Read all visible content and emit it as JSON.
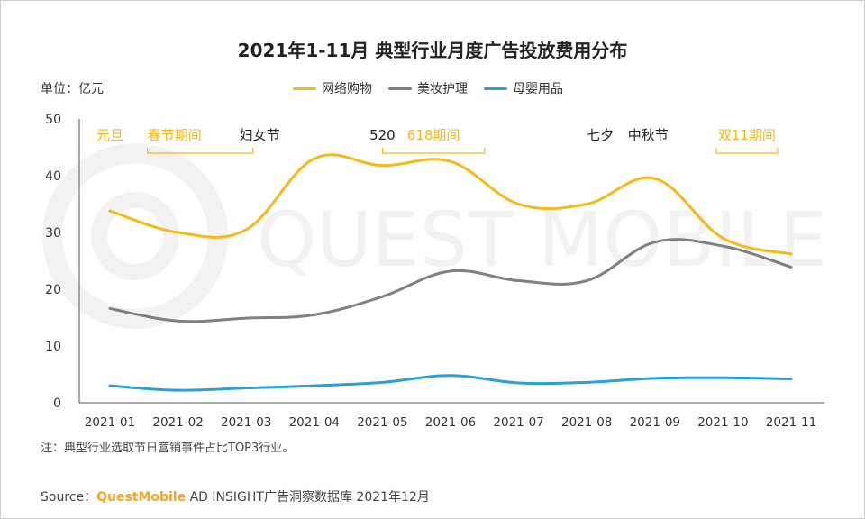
{
  "chart_data": {
    "type": "line",
    "title": "2021年1-11月 典型行业月度广告投放费用分布",
    "unit_label": "单位：亿元",
    "categories": [
      "2021-01",
      "2021-02",
      "2021-03",
      "2021-04",
      "2021-05",
      "2021-06",
      "2021-07",
      "2021-08",
      "2021-09",
      "2021-10",
      "2021-11"
    ],
    "ylim": [
      0,
      50
    ],
    "yticks": [
      0,
      10,
      20,
      30,
      40,
      50
    ],
    "grid": false,
    "legend_position": "top",
    "series": [
      {
        "name": "网络购物",
        "color": "#F7B918",
        "values": [
          33.8,
          30.0,
          30.5,
          43.0,
          41.8,
          42.5,
          35.0,
          35.0,
          39.5,
          29.0,
          26.2
        ]
      },
      {
        "name": "美妆护理",
        "color": "#808080",
        "values": [
          16.6,
          14.4,
          14.9,
          15.5,
          18.7,
          23.2,
          21.5,
          21.5,
          28.3,
          27.6,
          23.9
        ]
      },
      {
        "name": "母婴用品",
        "color": "#2B9FD8",
        "values": [
          3.0,
          2.2,
          2.6,
          3.0,
          3.6,
          4.8,
          3.5,
          3.6,
          4.3,
          4.4,
          4.2
        ]
      }
    ],
    "annotations": [
      {
        "text": "元旦",
        "x": 0.0,
        "highlight": true,
        "bracket_to": null
      },
      {
        "text": "春节期间",
        "x": 0.95,
        "highlight": true,
        "bracket_to": [
          0.55,
          2.1
        ]
      },
      {
        "text": "妇女节",
        "x": 2.2,
        "highlight": false,
        "bracket_to": null
      },
      {
        "text": "520",
        "x": 4.0,
        "highlight": false,
        "bracket_to": null
      },
      {
        "text": "618期间",
        "x": 4.75,
        "highlight": true,
        "bracket_to": [
          4.0,
          5.5
        ]
      },
      {
        "text": "七夕",
        "x": 7.2,
        "highlight": false,
        "bracket_to": null
      },
      {
        "text": "中秋节",
        "x": 7.9,
        "highlight": false,
        "bracket_to": null
      },
      {
        "text": "双11期间",
        "x": 9.35,
        "highlight": true,
        "bracket_to": [
          8.9,
          9.8
        ]
      }
    ],
    "annotation_color": "#F7B918"
  },
  "watermark": "QUEST MOBILE",
  "note": "注：典型行业选取节日营销事件占比TOP3行业。",
  "source": {
    "prefix": "Source：",
    "brand": "QuestMobile",
    "suffix": " AD INSIGHT广告洞察数据库 2021年12月"
  }
}
